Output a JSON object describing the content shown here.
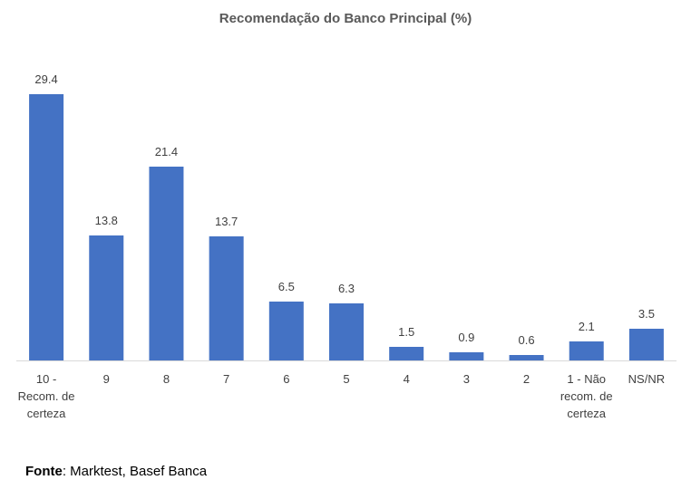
{
  "chart_data": {
    "type": "bar",
    "title": "Recomendação do Banco Principal (%)",
    "categories": [
      [
        "10 -",
        "Recom. de",
        "certeza"
      ],
      [
        "9"
      ],
      [
        "8"
      ],
      [
        "7"
      ],
      [
        "6"
      ],
      [
        "5"
      ],
      [
        "4"
      ],
      [
        "3"
      ],
      [
        "2"
      ],
      [
        "1 - Não",
        "recom. de",
        "certeza"
      ],
      [
        "NS/NR"
      ]
    ],
    "values": [
      29.4,
      13.8,
      21.4,
      13.7,
      6.5,
      6.3,
      1.5,
      0.9,
      0.6,
      2.1,
      3.5
    ],
    "value_labels": [
      "29.4",
      "13.8",
      "21.4",
      "13.7",
      "6.5",
      "6.3",
      "1.5",
      "0.9",
      "0.6",
      "2.1",
      "3.5"
    ],
    "ylim": [
      0,
      30
    ],
    "bar_color": "#4472C4",
    "grid": false,
    "legend": "none"
  },
  "source": {
    "label": "Fonte",
    "text": ": Marktest, Basef Banca"
  }
}
